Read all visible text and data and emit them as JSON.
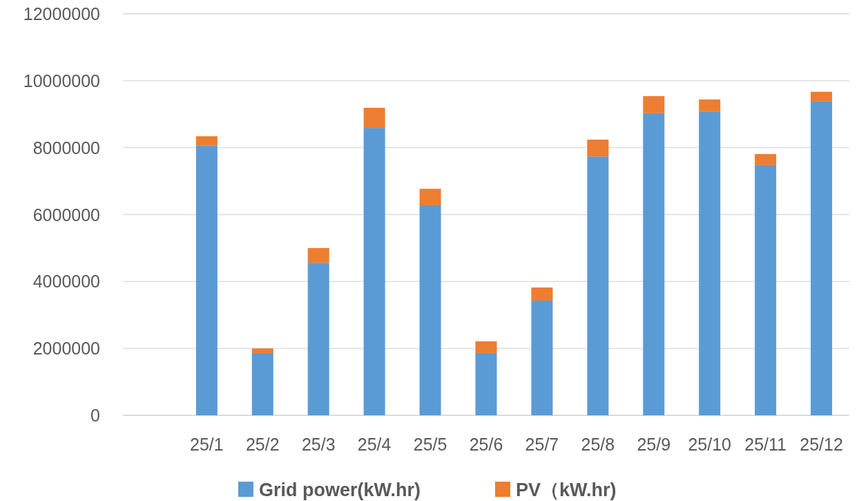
{
  "chart_data": {
    "type": "bar",
    "stacked": true,
    "categories": [
      null,
      "25/1",
      "25/2",
      "25/3",
      "25/4",
      "25/5",
      "25/6",
      "25/7",
      "25/8",
      "25/9",
      "25/10",
      "25/11",
      "25/12"
    ],
    "series": [
      {
        "name": "Grid power(kW.hr)",
        "color": "#5b9bd5",
        "values": [
          null,
          8070000,
          1860000,
          4560000,
          8590000,
          6280000,
          1860000,
          3430000,
          7740000,
          9030000,
          9070000,
          7480000,
          9380000
        ]
      },
      {
        "name": "PV（kW.hr)",
        "color": "#ed7d31",
        "values": [
          null,
          270000,
          140000,
          440000,
          600000,
          490000,
          350000,
          390000,
          500000,
          510000,
          370000,
          330000,
          290000
        ]
      }
    ],
    "ylim": [
      0,
      12000000
    ],
    "yticks": [
      0,
      2000000,
      4000000,
      6000000,
      8000000,
      10000000,
      12000000
    ],
    "grid": "y",
    "legend": "bottom"
  }
}
